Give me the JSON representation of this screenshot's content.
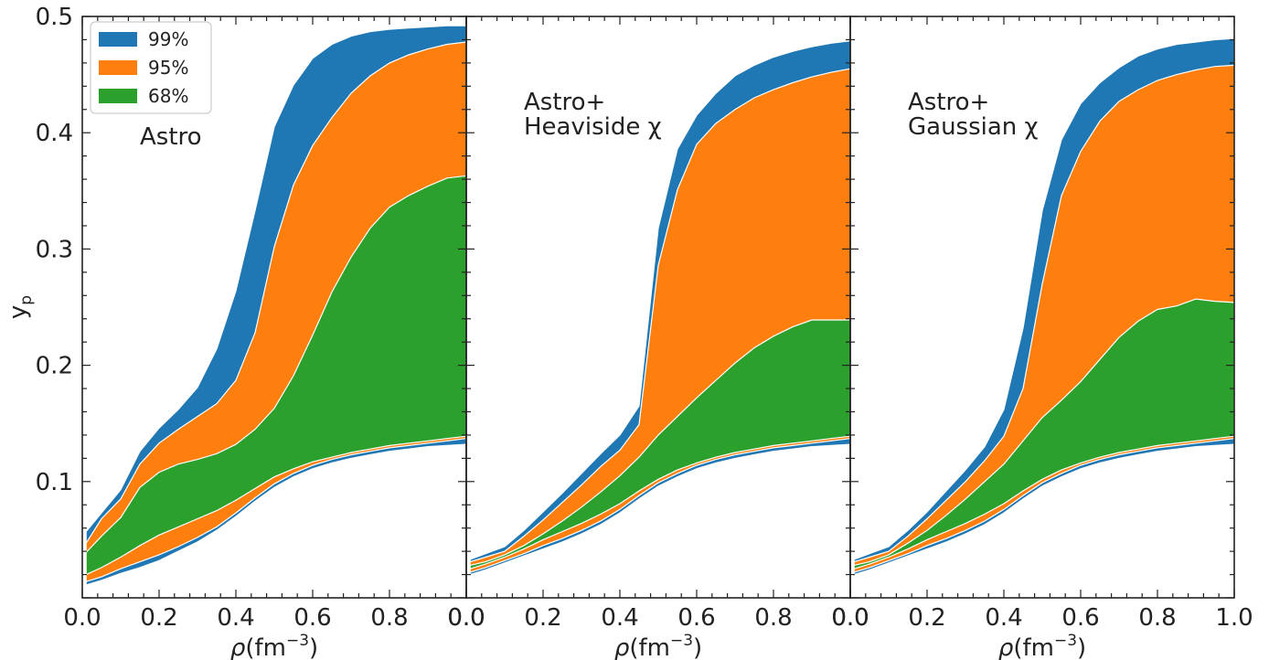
{
  "figure": {
    "ylabel": "y",
    "ylabel_sub": "p",
    "xlabel": "ρ(fm",
    "xlabel_sup": "−3",
    "xlabel_close": ")"
  },
  "colors": {
    "99%": "#1f77b4",
    "95%": "#ff7f0e",
    "68%": "#2ca02c",
    "frame": "#222222",
    "band_edge": "#ffffff"
  },
  "legend": {
    "placement": "top-left (first panel)",
    "entries": [
      {
        "label": "99%",
        "color": "#1f77b4"
      },
      {
        "label": "95%",
        "color": "#ff7f0e"
      },
      {
        "label": "68%",
        "color": "#2ca02c"
      }
    ]
  },
  "chart_data": [
    {
      "type": "area",
      "annotation": [
        "Astro"
      ],
      "xlabel": "ρ(fm−3)",
      "ylabel": "yp",
      "xlim": [
        0.0,
        1.0
      ],
      "ylim": [
        0.0,
        0.5
      ],
      "xticks": [
        "0.0",
        "0.2",
        "0.4",
        "0.6",
        "0.8",
        "0.0"
      ],
      "yticks": [
        "0.1",
        "0.2",
        "0.3",
        "0.4",
        "0.5"
      ],
      "x": [
        0.01,
        0.05,
        0.1,
        0.15,
        0.2,
        0.25,
        0.3,
        0.35,
        0.4,
        0.45,
        0.5,
        0.55,
        0.6,
        0.65,
        0.7,
        0.75,
        0.8,
        0.85,
        0.9,
        0.95,
        1.0
      ],
      "series": [
        {
          "name": "99%",
          "low": [
            0.011,
            0.015,
            0.021,
            0.026,
            0.032,
            0.04,
            0.048,
            0.058,
            0.07,
            0.083,
            0.095,
            0.104,
            0.111,
            0.116,
            0.12,
            0.123,
            0.126,
            0.128,
            0.13,
            0.131,
            0.132
          ],
          "high": [
            0.057,
            0.073,
            0.093,
            0.126,
            0.146,
            0.162,
            0.181,
            0.214,
            0.264,
            0.333,
            0.405,
            0.441,
            0.464,
            0.476,
            0.483,
            0.487,
            0.489,
            0.49,
            0.491,
            0.492,
            0.492
          ]
        },
        {
          "name": "95%",
          "low": [
            0.014,
            0.018,
            0.025,
            0.031,
            0.037,
            0.044,
            0.052,
            0.061,
            0.073,
            0.086,
            0.098,
            0.107,
            0.114,
            0.119,
            0.123,
            0.126,
            0.129,
            0.131,
            0.133,
            0.135,
            0.137
          ],
          "high": [
            0.047,
            0.068,
            0.085,
            0.115,
            0.133,
            0.145,
            0.156,
            0.167,
            0.187,
            0.228,
            0.302,
            0.355,
            0.389,
            0.413,
            0.434,
            0.449,
            0.46,
            0.467,
            0.472,
            0.476,
            0.478
          ]
        },
        {
          "name": "68%",
          "low": [
            0.02,
            0.026,
            0.035,
            0.045,
            0.054,
            0.061,
            0.068,
            0.075,
            0.084,
            0.094,
            0.104,
            0.111,
            0.117,
            0.121,
            0.125,
            0.128,
            0.131,
            0.133,
            0.135,
            0.137,
            0.139
          ],
          "high": [
            0.039,
            0.053,
            0.069,
            0.095,
            0.108,
            0.115,
            0.119,
            0.124,
            0.132,
            0.145,
            0.163,
            0.191,
            0.226,
            0.263,
            0.293,
            0.318,
            0.336,
            0.346,
            0.354,
            0.361,
            0.363
          ]
        }
      ]
    },
    {
      "type": "area",
      "annotation": [
        "Astro+",
        "Heaviside χ"
      ],
      "xlabel": "ρ(fm−3)",
      "xlim": [
        0.0,
        1.0
      ],
      "ylim": [
        0.0,
        0.5
      ],
      "xticks": [
        "0.0",
        "0.2",
        "0.4",
        "0.6",
        "0.8",
        "0.0"
      ],
      "x": [
        0.01,
        0.05,
        0.1,
        0.15,
        0.2,
        0.25,
        0.3,
        0.35,
        0.4,
        0.45,
        0.5,
        0.55,
        0.6,
        0.65,
        0.7,
        0.75,
        0.8,
        0.85,
        0.9,
        0.95,
        1.0
      ],
      "series": [
        {
          "name": "99%",
          "low": [
            0.02,
            0.024,
            0.03,
            0.036,
            0.042,
            0.048,
            0.055,
            0.063,
            0.073,
            0.085,
            0.096,
            0.104,
            0.111,
            0.116,
            0.12,
            0.123,
            0.126,
            0.128,
            0.13,
            0.131,
            0.132
          ],
          "high": [
            0.033,
            0.038,
            0.044,
            0.058,
            0.074,
            0.09,
            0.107,
            0.124,
            0.14,
            0.165,
            0.318,
            0.386,
            0.415,
            0.434,
            0.449,
            0.458,
            0.465,
            0.47,
            0.474,
            0.477,
            0.479
          ]
        },
        {
          "name": "95%",
          "low": [
            0.022,
            0.026,
            0.032,
            0.038,
            0.045,
            0.051,
            0.058,
            0.066,
            0.076,
            0.088,
            0.099,
            0.107,
            0.114,
            0.119,
            0.123,
            0.126,
            0.129,
            0.131,
            0.133,
            0.135,
            0.137
          ],
          "high": [
            0.031,
            0.035,
            0.04,
            0.053,
            0.067,
            0.082,
            0.097,
            0.113,
            0.127,
            0.149,
            0.286,
            0.351,
            0.39,
            0.408,
            0.42,
            0.43,
            0.437,
            0.443,
            0.448,
            0.452,
            0.455
          ]
        },
        {
          "name": "68%",
          "low": [
            0.025,
            0.029,
            0.035,
            0.042,
            0.05,
            0.057,
            0.064,
            0.072,
            0.081,
            0.092,
            0.102,
            0.11,
            0.116,
            0.121,
            0.125,
            0.128,
            0.131,
            0.133,
            0.135,
            0.137,
            0.139
          ],
          "high": [
            0.028,
            0.031,
            0.037,
            0.045,
            0.055,
            0.066,
            0.078,
            0.091,
            0.105,
            0.121,
            0.14,
            0.156,
            0.172,
            0.187,
            0.202,
            0.215,
            0.225,
            0.233,
            0.239,
            0.239,
            0.239
          ]
        }
      ]
    },
    {
      "type": "area",
      "annotation": [
        "Astro+",
        "Gaussian χ"
      ],
      "xlabel": "ρ(fm−3)",
      "xlim": [
        0.0,
        1.0
      ],
      "ylim": [
        0.0,
        0.5
      ],
      "xticks": [
        "0.0",
        "0.2",
        "0.4",
        "0.6",
        "0.8",
        "1.0"
      ],
      "x": [
        0.01,
        0.05,
        0.1,
        0.15,
        0.2,
        0.25,
        0.3,
        0.35,
        0.4,
        0.45,
        0.5,
        0.55,
        0.6,
        0.65,
        0.7,
        0.75,
        0.8,
        0.85,
        0.9,
        0.95,
        1.0
      ],
      "series": [
        {
          "name": "99%",
          "low": [
            0.02,
            0.024,
            0.03,
            0.036,
            0.042,
            0.048,
            0.055,
            0.063,
            0.073,
            0.085,
            0.096,
            0.104,
            0.111,
            0.116,
            0.12,
            0.123,
            0.126,
            0.128,
            0.13,
            0.131,
            0.132
          ],
          "high": [
            0.033,
            0.038,
            0.044,
            0.058,
            0.074,
            0.092,
            0.11,
            0.13,
            0.162,
            0.232,
            0.333,
            0.394,
            0.425,
            0.443,
            0.456,
            0.466,
            0.472,
            0.476,
            0.478,
            0.48,
            0.481
          ]
        },
        {
          "name": "95%",
          "low": [
            0.022,
            0.026,
            0.032,
            0.038,
            0.045,
            0.051,
            0.058,
            0.066,
            0.076,
            0.088,
            0.099,
            0.107,
            0.114,
            0.119,
            0.123,
            0.126,
            0.129,
            0.131,
            0.133,
            0.135,
            0.137
          ],
          "high": [
            0.031,
            0.035,
            0.04,
            0.053,
            0.068,
            0.084,
            0.1,
            0.118,
            0.139,
            0.18,
            0.27,
            0.346,
            0.384,
            0.41,
            0.427,
            0.437,
            0.445,
            0.45,
            0.454,
            0.457,
            0.458
          ]
        },
        {
          "name": "68%",
          "low": [
            0.025,
            0.029,
            0.035,
            0.042,
            0.05,
            0.057,
            0.064,
            0.072,
            0.081,
            0.092,
            0.102,
            0.11,
            0.116,
            0.121,
            0.125,
            0.128,
            0.131,
            0.133,
            0.135,
            0.137,
            0.139
          ],
          "high": [
            0.028,
            0.031,
            0.037,
            0.047,
            0.058,
            0.071,
            0.085,
            0.1,
            0.115,
            0.135,
            0.155,
            0.17,
            0.186,
            0.205,
            0.224,
            0.238,
            0.248,
            0.251,
            0.257,
            0.255,
            0.254
          ]
        }
      ]
    }
  ]
}
